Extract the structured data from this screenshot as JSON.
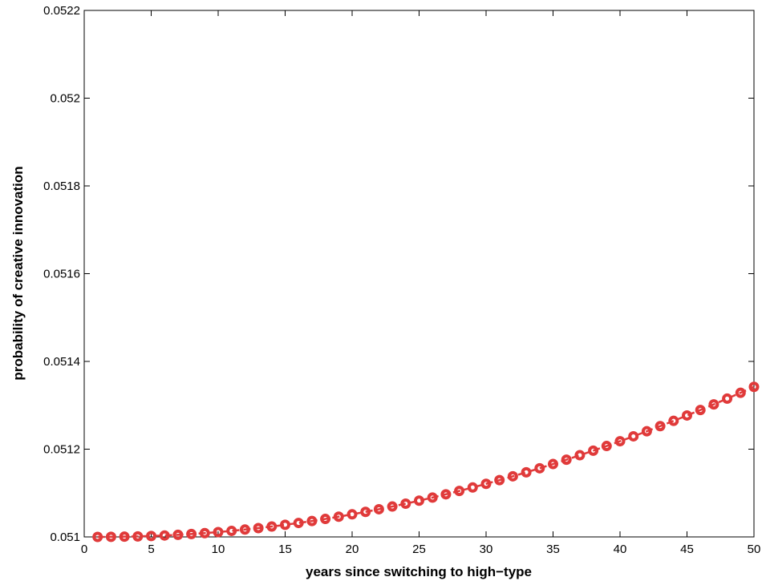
{
  "chart_data": {
    "type": "line",
    "xlabel": "years since switching to high−type",
    "ylabel": "probability of creative innovation",
    "xlim": [
      0,
      50
    ],
    "ylim": [
      0.051,
      0.0522
    ],
    "xticks": [
      0,
      5,
      10,
      15,
      20,
      25,
      30,
      35,
      40,
      45,
      50
    ],
    "xtick_labels": [
      "0",
      "5",
      "10",
      "15",
      "20",
      "25",
      "30",
      "35",
      "40",
      "45",
      "50"
    ],
    "yticks": [
      0.051,
      0.0512,
      0.0514,
      0.0516,
      0.0518,
      0.052,
      0.0522
    ],
    "ytick_labels": [
      "0.051",
      "0.0512",
      "0.0514",
      "0.0516",
      "0.0518",
      "0.052",
      "0.0522"
    ],
    "grid": false,
    "legend": false,
    "color": "#e03a3a",
    "marker": "circle",
    "line_style": "dashed",
    "series": [
      {
        "x": [
          1,
          2,
          3,
          4,
          5,
          6,
          7,
          8,
          9,
          10,
          11,
          12,
          13,
          14,
          15,
          16,
          17,
          18,
          19,
          20,
          21,
          22,
          23,
          24,
          25,
          26,
          27,
          28,
          29,
          30,
          31,
          32,
          33,
          34,
          35,
          36,
          37,
          38,
          39,
          40,
          41,
          42,
          43,
          44,
          45,
          46,
          47,
          48,
          49,
          50
        ],
        "values": [
          0.051,
          0.0510002,
          0.0510006,
          0.0510012,
          0.0510021,
          0.0510033,
          0.0510048,
          0.0510066,
          0.0510086,
          0.051011,
          0.0510138,
          0.0510168,
          0.0510201,
          0.0510237,
          0.0510276,
          0.0510318,
          0.0510362,
          0.051041,
          0.0510461,
          0.0510515,
          0.0510571,
          0.0510631,
          0.0510693,
          0.0510758,
          0.0510826,
          0.0510897,
          0.0510971,
          0.0511048,
          0.0511127,
          0.051121,
          0.0511294,
          0.0511382,
          0.0511472,
          0.0511565,
          0.0511661,
          0.051176,
          0.0511862,
          0.0511966,
          0.0512072,
          0.0512181,
          0.0512293,
          0.0512408,
          0.0512525,
          0.0512645,
          0.0512768,
          0.0512893,
          0.0513021,
          0.0513152,
          0.0513285,
          0.051342
        ]
      }
    ]
  }
}
